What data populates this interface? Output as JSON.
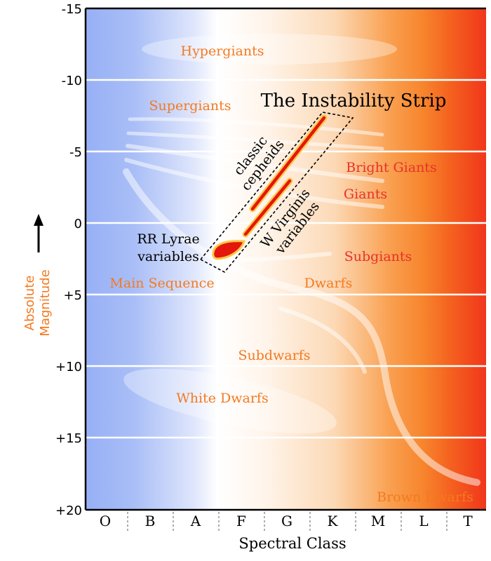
{
  "figure": {
    "title": "The Instability Strip",
    "x_axis_label": "Spectral Class",
    "y_axis_label_line1": "Absolute",
    "y_axis_label_line2": "Magnitude"
  },
  "y_ticks": [
    {
      "label": "-15",
      "value": -15
    },
    {
      "label": "-10",
      "value": -10
    },
    {
      "label": "-5",
      "value": -5
    },
    {
      "label": "0",
      "value": 0
    },
    {
      "label": "+5",
      "value": 5
    },
    {
      "label": "+10",
      "value": 10
    },
    {
      "label": "+15",
      "value": 15
    },
    {
      "label": "+20",
      "value": 20
    }
  ],
  "spectral_classes": [
    "O",
    "B",
    "A",
    "F",
    "G",
    "K",
    "M",
    "L",
    "T"
  ],
  "regions": {
    "hypergiants": "Hypergiants",
    "supergiants": "Supergiants",
    "bright_giants": "Bright Giants",
    "giants": "Giants",
    "subgiants": "Subgiants",
    "main_sequence": "Main Sequence",
    "dwarfs": "Dwarfs",
    "subdwarfs": "Subdwarfs",
    "white_dwarfs": "White Dwarfs",
    "brown_dwarfs": "Brown Dwarfs"
  },
  "variables": {
    "classic_cepheids_line1": "classic",
    "classic_cepheids_line2": "cepheids",
    "w_virginis_line1": "W Virginis",
    "w_virginis_line2": "variables",
    "rr_lyrae_line1": "RR Lyrae",
    "rr_lyrae_line2": "variables"
  },
  "colors": {
    "hot_blue": "#97b0f5",
    "white": "#ffffff",
    "orange": "#f9a050",
    "red": "#f1361b",
    "label_orange": "#f47920",
    "label_red": "#e8312a",
    "variable_red": "#e5160b",
    "variable_outline": "#fbc94a"
  }
}
